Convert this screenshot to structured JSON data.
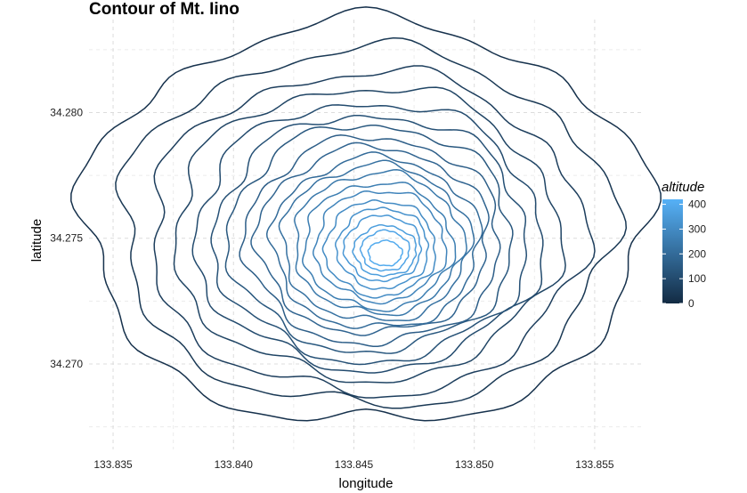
{
  "chart_data": {
    "type": "contour",
    "title": "Contour of Mt. Iino",
    "xlabel": "longitude",
    "ylabel": "latitude",
    "xlim": [
      133.834,
      133.857
    ],
    "ylim": [
      34.2666,
      34.2837
    ],
    "x_ticks": [
      "133.835",
      "133.840",
      "133.845",
      "133.850",
      "133.855"
    ],
    "y_ticks": [
      "34.270",
      "34.275",
      "34.280"
    ],
    "x_tick_values": [
      133.835,
      133.84,
      133.845,
      133.85,
      133.855
    ],
    "y_tick_values": [
      34.27,
      34.275,
      34.28
    ],
    "grid": true,
    "legend": {
      "title": "altitude",
      "position": "right",
      "labels": [
        "400",
        "300",
        "200",
        "100",
        "0"
      ],
      "label_values": [
        400,
        300,
        200,
        100,
        0
      ],
      "range": [
        0,
        420
      ],
      "low_color": "#132b43",
      "high_color": "#56b1f7"
    },
    "peak": {
      "lon": 133.8463,
      "lat": 34.2744
    },
    "levels": [
      {
        "altitude": 20,
        "center": [
          133.8455,
          34.2756
        ],
        "radius": [
          0.0117,
          0.008
        ]
      },
      {
        "altitude": 40,
        "center": [
          133.8455,
          34.2754
        ],
        "radius": [
          0.0102,
          0.0071
        ]
      },
      {
        "altitude": 60,
        "center": [
          133.8455,
          34.2752
        ],
        "radius": [
          0.009,
          0.0064
        ]
      },
      {
        "altitude": 80,
        "center": [
          133.8455,
          34.2752
        ],
        "radius": [
          0.008,
          0.0058
        ]
      },
      {
        "altitude": 100,
        "center": [
          133.8456,
          34.2751
        ],
        "radius": [
          0.0072,
          0.0053
        ]
      },
      {
        "altitude": 120,
        "center": [
          133.8457,
          34.275
        ],
        "radius": [
          0.0065,
          0.0049
        ]
      },
      {
        "altitude": 140,
        "center": [
          133.8457,
          34.275
        ],
        "radius": [
          0.0059,
          0.0045
        ]
      },
      {
        "altitude": 160,
        "center": [
          133.8458,
          34.2749
        ],
        "radius": [
          0.0053,
          0.0041
        ]
      },
      {
        "altitude": 180,
        "center": [
          133.8458,
          34.2749
        ],
        "radius": [
          0.0048,
          0.0037
        ]
      },
      {
        "altitude": 200,
        "center": [
          133.8459,
          34.2748
        ],
        "radius": [
          0.0043,
          0.0034
        ]
      },
      {
        "altitude": 220,
        "center": [
          133.8459,
          34.2748
        ],
        "radius": [
          0.0039,
          0.0031
        ]
      },
      {
        "altitude": 240,
        "center": [
          133.846,
          34.2748
        ],
        "radius": [
          0.0035,
          0.0028
        ]
      },
      {
        "altitude": 260,
        "center": [
          133.846,
          34.2747
        ],
        "radius": [
          0.0031,
          0.0025
        ]
      },
      {
        "altitude": 280,
        "center": [
          133.8461,
          34.2747
        ],
        "radius": [
          0.0027,
          0.0022
        ]
      },
      {
        "altitude": 300,
        "center": [
          133.8461,
          34.2746
        ],
        "radius": [
          0.0023,
          0.0019
        ]
      },
      {
        "altitude": 320,
        "center": [
          133.8462,
          34.2746
        ],
        "radius": [
          0.0019,
          0.0016
        ]
      },
      {
        "altitude": 340,
        "center": [
          133.8462,
          34.2746
        ],
        "radius": [
          0.0016,
          0.0013
        ]
      },
      {
        "altitude": 360,
        "center": [
          133.8463,
          34.2745
        ],
        "radius": [
          0.0013,
          0.001
        ]
      },
      {
        "altitude": 380,
        "center": [
          133.8463,
          34.2745
        ],
        "radius": [
          0.001,
          0.0008
        ]
      },
      {
        "altitude": 400,
        "center": [
          133.8463,
          34.2744
        ],
        "radius": [
          0.0007,
          0.0005
        ]
      }
    ]
  }
}
